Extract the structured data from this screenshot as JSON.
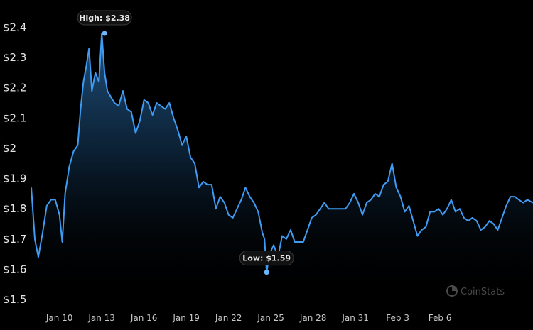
{
  "chart_data": {
    "type": "area",
    "x_tick_labels": [
      "Jan 10",
      "Jan 13",
      "Jan 16",
      "Jan 19",
      "Jan 22",
      "Jan 25",
      "Jan 28",
      "Jan 31",
      "Feb 3",
      "Feb 6"
    ],
    "y_tick_labels": [
      "$2.4",
      "$2.3",
      "$2.2",
      "$2.1",
      "$2",
      "$1.9",
      "$1.8",
      "$1.7",
      "$1.6",
      "$1.5"
    ],
    "ylim": [
      1.5,
      2.4
    ],
    "xlim": [
      0,
      35.6
    ],
    "grid": false,
    "line_color": "#3f9bf2",
    "background_color": "#000000",
    "high": {
      "label": "High: $2.38",
      "x": 5.2,
      "y": 2.38
    },
    "low": {
      "label": "Low: $1.59",
      "x": 16.7,
      "y": 1.59
    },
    "series": [
      {
        "x": [
          0.0,
          0.25,
          0.5,
          0.8,
          1.1,
          1.4,
          1.7,
          2.0,
          2.2,
          2.4,
          2.7,
          3.0,
          3.3,
          3.5,
          3.7,
          3.9,
          4.1,
          4.3,
          4.55,
          4.8,
          5.0,
          5.2,
          5.4,
          5.65,
          5.9,
          6.2,
          6.5,
          6.8,
          7.1,
          7.4,
          7.7,
          8.0,
          8.3,
          8.6,
          8.9,
          9.2,
          9.5,
          9.8,
          10.1,
          10.4,
          10.7,
          11.0,
          11.3,
          11.6,
          11.9,
          12.2,
          12.5,
          12.8,
          13.1,
          13.4,
          13.7,
          14.0,
          14.3,
          14.6,
          14.9,
          15.2,
          15.5,
          15.8,
          16.1,
          16.4,
          16.55,
          16.7,
          16.9,
          17.2,
          17.5,
          17.8,
          18.1,
          18.4,
          18.7,
          19.0,
          19.3,
          19.6,
          19.9,
          20.2,
          20.5,
          20.8,
          21.1,
          21.4,
          21.7,
          22.0,
          22.3,
          22.6,
          22.9,
          23.2,
          23.5,
          23.8,
          24.1,
          24.4,
          24.7,
          25.0,
          25.3,
          25.6,
          25.9,
          26.2,
          26.5,
          26.8,
          27.1,
          27.4,
          27.7,
          28.0,
          28.3,
          28.6,
          28.9,
          29.2,
          29.5,
          29.8,
          30.1,
          30.4,
          30.7,
          31.0,
          31.3,
          31.6,
          31.9,
          32.2,
          32.5,
          32.8,
          33.1,
          33.4,
          33.7,
          34.0,
          34.3,
          34.6,
          34.9,
          35.2,
          35.6
        ],
        "values": [
          1.87,
          1.7,
          1.64,
          1.72,
          1.81,
          1.83,
          1.83,
          1.78,
          1.69,
          1.85,
          1.94,
          1.99,
          2.01,
          2.13,
          2.22,
          2.27,
          2.33,
          2.19,
          2.25,
          2.22,
          2.38,
          2.25,
          2.19,
          2.17,
          2.15,
          2.14,
          2.19,
          2.13,
          2.12,
          2.05,
          2.09,
          2.16,
          2.15,
          2.11,
          2.15,
          2.14,
          2.13,
          2.15,
          2.1,
          2.06,
          2.01,
          2.04,
          1.97,
          1.95,
          1.87,
          1.89,
          1.88,
          1.88,
          1.8,
          1.84,
          1.82,
          1.78,
          1.77,
          1.8,
          1.83,
          1.87,
          1.84,
          1.82,
          1.79,
          1.72,
          1.7,
          1.59,
          1.65,
          1.68,
          1.64,
          1.71,
          1.7,
          1.73,
          1.69,
          1.69,
          1.69,
          1.73,
          1.77,
          1.78,
          1.8,
          1.82,
          1.8,
          1.8,
          1.8,
          1.8,
          1.8,
          1.82,
          1.85,
          1.82,
          1.78,
          1.82,
          1.83,
          1.85,
          1.84,
          1.88,
          1.89,
          1.95,
          1.87,
          1.84,
          1.79,
          1.81,
          1.76,
          1.71,
          1.73,
          1.74,
          1.79,
          1.79,
          1.8,
          1.78,
          1.8,
          1.83,
          1.79,
          1.8,
          1.77,
          1.76,
          1.77,
          1.76,
          1.73,
          1.74,
          1.76,
          1.75,
          1.73,
          1.77,
          1.81,
          1.84,
          1.84,
          1.83,
          1.82,
          1.83,
          1.82
        ]
      }
    ]
  },
  "watermark": {
    "text": "CoinStats",
    "icon": "coinstats-logo-icon"
  }
}
